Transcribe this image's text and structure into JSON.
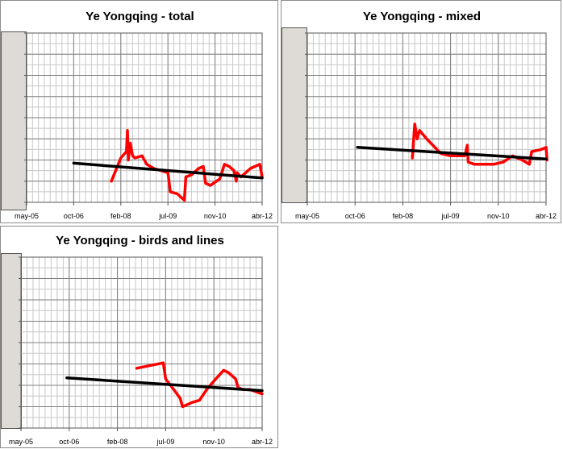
{
  "chart_data": [
    {
      "type": "line",
      "title": "Ye Yongqing - total",
      "xlabel": "",
      "ylabel": "",
      "x_ticks": [
        "may-05",
        "oct-06",
        "feb-08",
        "jul-09",
        "nov-10",
        "abr-12"
      ],
      "xlim": [
        0,
        5
      ],
      "ylim": [
        0,
        8
      ],
      "grid": true,
      "series": [
        {
          "color": "#ff0000",
          "points": [
            [
              1.8,
              1.0
            ],
            [
              2.0,
              2.1
            ],
            [
              2.12,
              2.4
            ],
            [
              2.14,
              3.4
            ],
            [
              2.16,
              2.0
            ],
            [
              2.2,
              2.8
            ],
            [
              2.25,
              2.2
            ],
            [
              2.3,
              2.1
            ],
            [
              2.45,
              2.2
            ],
            [
              2.55,
              1.8
            ],
            [
              2.7,
              1.6
            ],
            [
              2.85,
              1.5
            ],
            [
              3.0,
              1.4
            ],
            [
              3.05,
              0.5
            ],
            [
              3.2,
              0.4
            ],
            [
              3.3,
              0.2
            ],
            [
              3.35,
              0.1
            ],
            [
              3.38,
              1.2
            ],
            [
              3.5,
              1.3
            ],
            [
              3.65,
              1.6
            ],
            [
              3.75,
              1.7
            ],
            [
              3.8,
              0.9
            ],
            [
              3.9,
              0.8
            ],
            [
              4.1,
              1.1
            ],
            [
              4.2,
              1.8
            ],
            [
              4.3,
              1.7
            ],
            [
              4.4,
              1.5
            ],
            [
              4.45,
              1.0
            ],
            [
              4.47,
              1.4
            ],
            [
              4.55,
              1.2
            ],
            [
              4.65,
              1.4
            ],
            [
              4.75,
              1.6
            ],
            [
              4.95,
              1.8
            ],
            [
              5.0,
              1.2
            ]
          ]
        },
        {
          "color": "#000000",
          "points": [
            [
              1.0,
              1.85
            ],
            [
              5.0,
              1.15
            ]
          ]
        }
      ]
    },
    {
      "type": "line",
      "title": "Ye Yongqing - mixed",
      "xlabel": "",
      "ylabel": "",
      "x_ticks": [
        "may-05",
        "oct-06",
        "feb-08",
        "jul-09",
        "nov-10",
        "abr-12"
      ],
      "xlim": [
        0,
        5
      ],
      "ylim": [
        0,
        8
      ],
      "grid": true,
      "series": [
        {
          "color": "#ff0000",
          "points": [
            [
              2.2,
              2.1
            ],
            [
              2.25,
              3.7
            ],
            [
              2.3,
              3.0
            ],
            [
              2.35,
              3.4
            ],
            [
              2.5,
              3.0
            ],
            [
              2.8,
              2.3
            ],
            [
              3.0,
              2.2
            ],
            [
              3.3,
              2.2
            ],
            [
              3.35,
              2.7
            ],
            [
              3.37,
              1.9
            ],
            [
              3.5,
              1.8
            ],
            [
              3.7,
              1.8
            ],
            [
              3.9,
              1.8
            ],
            [
              4.1,
              1.9
            ],
            [
              4.3,
              2.2
            ],
            [
              4.5,
              2.0
            ],
            [
              4.65,
              1.8
            ],
            [
              4.7,
              2.4
            ],
            [
              4.9,
              2.5
            ],
            [
              5.0,
              2.6
            ],
            [
              5.02,
              2.0
            ]
          ]
        },
        {
          "color": "#000000",
          "points": [
            [
              1.05,
              2.6
            ],
            [
              5.0,
              2.05
            ]
          ]
        }
      ]
    },
    {
      "type": "line",
      "title": "Ye Yongqing - birds and lines",
      "xlabel": "",
      "ylabel": "",
      "x_ticks": [
        "may-05",
        "oct-06",
        "feb-08",
        "jul-09",
        "nov-10",
        "abr-12"
      ],
      "xlim": [
        0,
        5
      ],
      "ylim": [
        0,
        8
      ],
      "grid": true,
      "series": [
        {
          "color": "#ff0000",
          "points": [
            [
              2.4,
              2.8
            ],
            [
              2.95,
              3.05
            ],
            [
              3.0,
              2.3
            ],
            [
              3.1,
              2.0
            ],
            [
              3.2,
              1.7
            ],
            [
              3.3,
              1.4
            ],
            [
              3.35,
              1.0
            ],
            [
              3.55,
              1.2
            ],
            [
              3.7,
              1.3
            ],
            [
              3.85,
              1.8
            ],
            [
              4.0,
              2.2
            ],
            [
              4.2,
              2.7
            ],
            [
              4.3,
              2.6
            ],
            [
              4.35,
              2.5
            ],
            [
              4.45,
              2.3
            ],
            [
              4.5,
              1.9
            ],
            [
              4.6,
              1.8
            ],
            [
              4.75,
              1.8
            ],
            [
              5.0,
              1.6
            ]
          ]
        },
        {
          "color": "#000000",
          "points": [
            [
              0.95,
              2.35
            ],
            [
              5.0,
              1.75
            ]
          ]
        }
      ]
    }
  ]
}
